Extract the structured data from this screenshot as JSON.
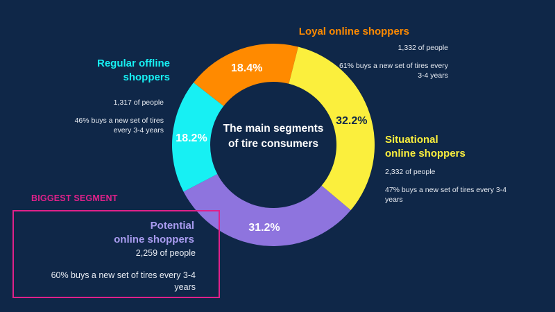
{
  "chart_data": {
    "type": "pie",
    "center_label": "The main segments of tire consumers",
    "center_label_lines": [
      "The main segments",
      "of tire consumers"
    ],
    "segments": [
      {
        "name": "Loyal online shoppers",
        "value": 18.4,
        "percent_label": "18.4%",
        "color": "#ff8a00",
        "people": "1,332 of people",
        "note": "61% buys a new set of tires every 3-4 years"
      },
      {
        "name": "Situational online shoppers",
        "value": 32.2,
        "percent_label": "32.2%",
        "color": "#fbef3d",
        "people": "2,332 of people",
        "note": "47% buys a new set of tires every 3-4 years"
      },
      {
        "name": "Potential online shoppers",
        "value": 31.2,
        "percent_label": "31.2%",
        "color": "#8e74de",
        "people": "2,259 of people",
        "note": "60% buys a new set of tires every 3-4 years"
      },
      {
        "name": "Regular offline shoppers",
        "value": 18.2,
        "percent_label": "18.2%",
        "color": "#17f0f3",
        "people": "1,317 of people",
        "note": "46% buys a new set of tires every 3-4 years"
      }
    ],
    "biggest_segment_label": "BIGGEST SEGMENT"
  },
  "labels": {
    "loyal_title": "Loyal online shoppers",
    "regular_title_l1": "Regular offline",
    "regular_title_l2": "shoppers",
    "situational_title_l1": "Situational",
    "situational_title_l2": "online shoppers",
    "potential_title_l1": "Potential",
    "potential_title_l2": "online shoppers",
    "loyal_note_l1": "61% buys a new set of tires every",
    "loyal_note_l2": "3-4 years",
    "regular_note_l1": "46% buys a new set of tires",
    "regular_note_l2": "every 3-4 years",
    "situational_note_l1": "47% buys a new set of tires every 3-4",
    "situational_note_l2": "years",
    "potential_note_l1": "60% buys a new set of tires every 3-4",
    "potential_note_l2": "years"
  },
  "colors": {
    "background": "#0f2748",
    "accent_pink": "#e0218a",
    "text": "#ffffff"
  }
}
